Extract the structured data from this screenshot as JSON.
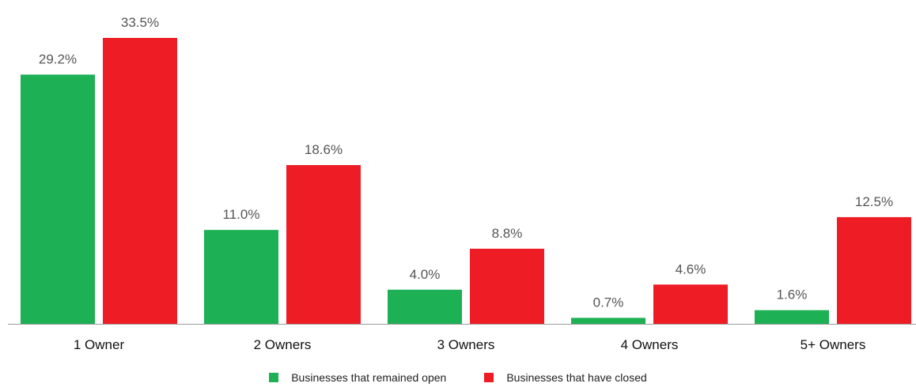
{
  "chart_data": {
    "type": "bar",
    "categories": [
      "1 Owner",
      "2 Owners",
      "3 Owners",
      "4 Owners",
      "5+ Owners"
    ],
    "series": [
      {
        "name": "Businesses that remained open",
        "values": [
          29.2,
          11.0,
          4.0,
          0.7,
          1.6
        ],
        "labels": [
          "29.2%",
          "11.0%",
          "4.0%",
          "0.7%",
          "1.6%"
        ],
        "color": "#1db054"
      },
      {
        "name": "Businesses that have closed",
        "values": [
          33.5,
          18.6,
          8.8,
          4.6,
          12.5
        ],
        "labels": [
          "33.5%",
          "18.6%",
          "8.8%",
          "4.6%",
          "12.5%"
        ],
        "color": "#ee1c25"
      }
    ],
    "ylim": [
      0,
      33.5
    ],
    "legend_position": "bottom"
  }
}
